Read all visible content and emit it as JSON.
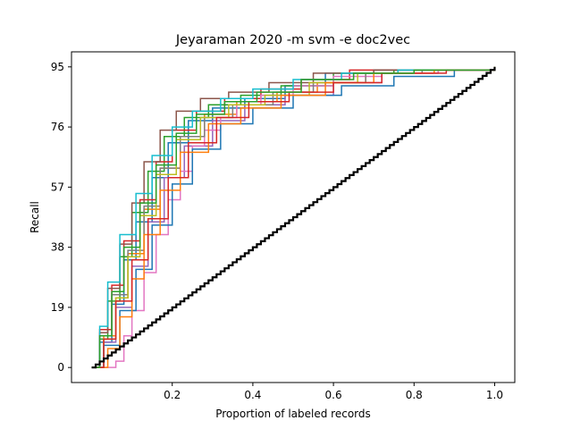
{
  "chart_data": {
    "type": "line",
    "title": "Jeyaraman 2020 -m svm -e doc2vec",
    "xlabel": "Proportion of labeled records",
    "ylabel": "Recall",
    "xlim": [
      -0.05,
      1.05
    ],
    "ylim": [
      -4.75,
      99.75
    ],
    "x_ticks": [
      0.2,
      0.4,
      0.6,
      0.8,
      1.0
    ],
    "x_tick_labels": [
      "0.2",
      "0.4",
      "0.6",
      "0.8",
      "1.0"
    ],
    "y_ticks": [
      0,
      19,
      38,
      57,
      76,
      95
    ],
    "y_tick_labels": [
      "0",
      "19",
      "38",
      "57",
      "76",
      "95"
    ],
    "grid": false,
    "legend": "none",
    "step_style": "post",
    "series": [
      {
        "color": "#1f77b4",
        "x": [
          0,
          0.02,
          0.05,
          0.08,
          0.11,
          0.15,
          0.19,
          0.24,
          0.3,
          0.38,
          0.48,
          0.58,
          0.7,
          0.85,
          1.0
        ],
        "y": [
          0,
          8,
          20,
          34,
          46,
          60,
          71,
          78,
          82,
          85,
          89,
          93,
          94,
          94,
          95
        ]
      },
      {
        "color": "#ff7f0e",
        "x": [
          0,
          0.03,
          0.06,
          0.09,
          0.13,
          0.17,
          0.22,
          0.28,
          0.36,
          0.46,
          0.56,
          0.68,
          0.8,
          1.0
        ],
        "y": [
          0,
          10,
          22,
          36,
          50,
          63,
          73,
          80,
          84,
          87,
          90,
          93,
          94,
          95
        ]
      },
      {
        "color": "#2ca02c",
        "x": [
          0,
          0.02,
          0.04,
          0.07,
          0.1,
          0.14,
          0.18,
          0.23,
          0.29,
          0.37,
          0.47,
          0.6,
          0.75,
          1.0
        ],
        "y": [
          0,
          9,
          21,
          35,
          49,
          62,
          73,
          79,
          83,
          86,
          89,
          93,
          94,
          95
        ]
      },
      {
        "color": "#d62728",
        "x": [
          0,
          0.02,
          0.05,
          0.08,
          0.12,
          0.16,
          0.2,
          0.26,
          0.33,
          0.42,
          0.52,
          0.64,
          0.78,
          1.0
        ],
        "y": [
          0,
          12,
          26,
          40,
          53,
          65,
          75,
          81,
          85,
          88,
          91,
          94,
          94,
          95
        ]
      },
      {
        "color": "#9467bd",
        "x": [
          0,
          0.03,
          0.06,
          0.1,
          0.14,
          0.18,
          0.23,
          0.3,
          0.38,
          0.48,
          0.6,
          0.72,
          0.86,
          1.0
        ],
        "y": [
          0,
          8,
          19,
          32,
          46,
          60,
          70,
          78,
          83,
          86,
          90,
          93,
          94,
          95
        ]
      },
      {
        "color": "#8c564b",
        "x": [
          0,
          0.02,
          0.04,
          0.07,
          0.1,
          0.13,
          0.17,
          0.21,
          0.27,
          0.34,
          0.44,
          0.55,
          0.7,
          1.0
        ],
        "y": [
          0,
          11,
          25,
          39,
          52,
          65,
          75,
          81,
          85,
          87,
          90,
          93,
          94,
          95
        ]
      },
      {
        "color": "#e377c2",
        "x": [
          0,
          0.03,
          0.06,
          0.08,
          0.1,
          0.13,
          0.16,
          0.19,
          0.22,
          0.25,
          0.28,
          0.32,
          0.36,
          0.42,
          0.5,
          0.6,
          0.72,
          0.86,
          1.0
        ],
        "y": [
          0,
          0,
          2,
          10,
          18,
          30,
          42,
          53,
          62,
          70,
          75,
          79,
          83,
          86,
          89,
          92,
          93,
          94,
          95
        ]
      },
      {
        "color": "#7f7f7f",
        "x": [
          0,
          0.02,
          0.05,
          0.09,
          0.13,
          0.17,
          0.22,
          0.28,
          0.35,
          0.45,
          0.55,
          0.68,
          0.82,
          1.0
        ],
        "y": [
          0,
          10,
          23,
          37,
          51,
          63,
          73,
          79,
          83,
          87,
          90,
          93,
          94,
          95
        ]
      },
      {
        "color": "#bcbd22",
        "x": [
          0,
          0.03,
          0.06,
          0.09,
          0.12,
          0.16,
          0.21,
          0.27,
          0.34,
          0.43,
          0.54,
          0.66,
          0.8,
          1.0
        ],
        "y": [
          0,
          9,
          22,
          35,
          48,
          61,
          72,
          79,
          83,
          86,
          90,
          93,
          94,
          95
        ]
      },
      {
        "color": "#17becf",
        "x": [
          0,
          0.02,
          0.04,
          0.07,
          0.11,
          0.15,
          0.2,
          0.25,
          0.32,
          0.4,
          0.5,
          0.62,
          0.76,
          1.0
        ],
        "y": [
          0,
          13,
          27,
          42,
          55,
          67,
          76,
          81,
          85,
          88,
          91,
          93,
          94,
          95
        ]
      },
      {
        "color": "#1f77b4",
        "x": [
          0,
          0.03,
          0.07,
          0.11,
          0.15,
          0.2,
          0.25,
          0.32,
          0.4,
          0.5,
          0.62,
          0.75,
          0.9,
          1.0
        ],
        "y": [
          0,
          7,
          18,
          31,
          45,
          58,
          69,
          77,
          82,
          86,
          89,
          92,
          94,
          95
        ]
      },
      {
        "color": "#ff7f0e",
        "x": [
          0,
          0.04,
          0.07,
          0.1,
          0.13,
          0.17,
          0.22,
          0.29,
          0.37,
          0.47,
          0.58,
          0.7,
          0.85,
          1.0
        ],
        "y": [
          0,
          6,
          16,
          28,
          42,
          56,
          68,
          77,
          82,
          86,
          90,
          93,
          94,
          95
        ]
      },
      {
        "color": "#d62728",
        "x": [
          0,
          0.03,
          0.06,
          0.1,
          0.14,
          0.19,
          0.24,
          0.31,
          0.39,
          0.49,
          0.6,
          0.72,
          0.88,
          1.0
        ],
        "y": [
          0,
          9,
          21,
          34,
          47,
          60,
          71,
          79,
          84,
          87,
          90,
          93,
          94,
          95
        ]
      },
      {
        "color": "#2ca02c",
        "x": [
          0,
          0.02,
          0.05,
          0.08,
          0.12,
          0.16,
          0.21,
          0.26,
          0.33,
          0.41,
          0.52,
          0.65,
          0.8,
          1.0
        ],
        "y": [
          0,
          10,
          24,
          38,
          52,
          64,
          74,
          80,
          84,
          87,
          91,
          93,
          94,
          95
        ]
      },
      {
        "color": "#000000",
        "width": 2.2,
        "steps": 100,
        "x": [
          0,
          1
        ],
        "y": [
          0,
          95
        ]
      }
    ]
  }
}
